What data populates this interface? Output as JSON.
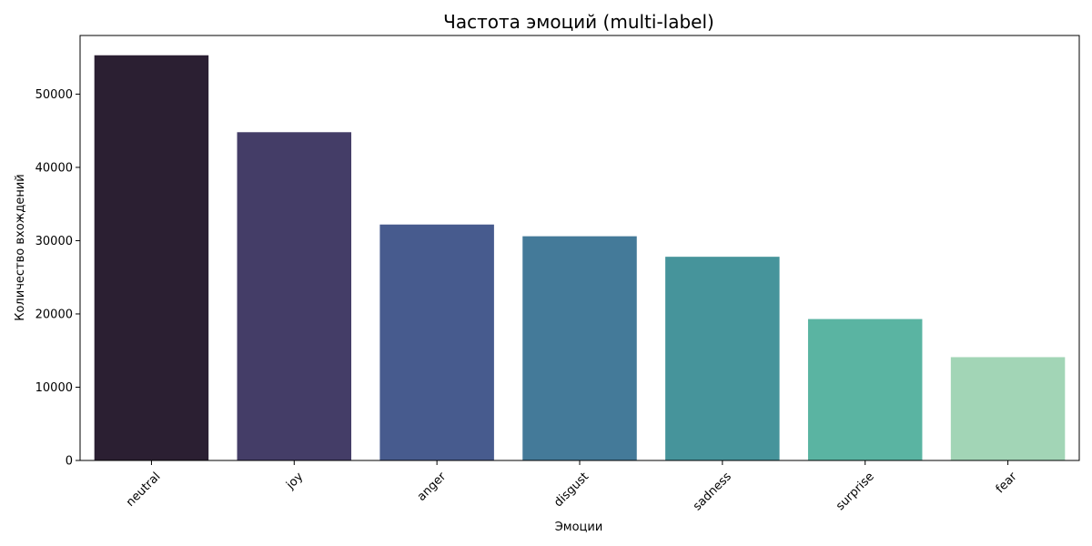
{
  "chart_data": {
    "type": "bar",
    "title": "Частота эмоций (multi-label)",
    "xlabel": "Эмоции",
    "ylabel": "Количество вхождений",
    "categories": [
      "neutral",
      "joy",
      "anger",
      "disgust",
      "sadness",
      "surprise",
      "fear"
    ],
    "values": [
      55300,
      44800,
      32200,
      30600,
      27800,
      19300,
      14100
    ],
    "colors": [
      "#2b1f32",
      "#443d67",
      "#475b8e",
      "#447a99",
      "#46949b",
      "#5ab4a2",
      "#a2d5b6"
    ],
    "yticks": [
      0,
      10000,
      20000,
      30000,
      40000,
      50000
    ],
    "ylim": [
      0,
      58000
    ],
    "grid": false,
    "legend": "none"
  }
}
